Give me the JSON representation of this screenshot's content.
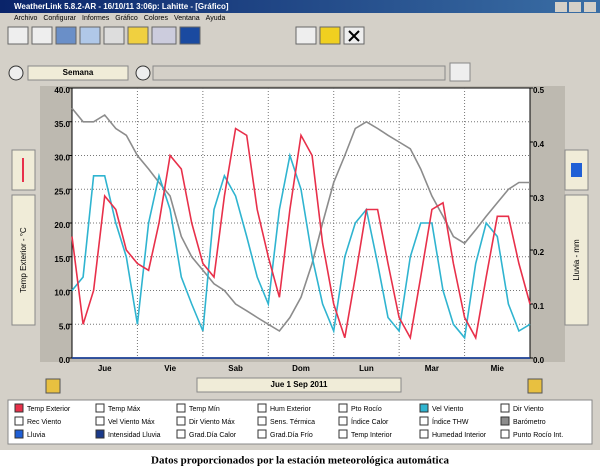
{
  "ui": {
    "window_title": "WeatherLink 5.8.2-AR  -  16/10/11   3:06p: Lahitte - [Gráfico]",
    "menu": [
      "Archivo",
      "Configurar",
      "Informes",
      "Gráfico",
      "Colores",
      "Ventana",
      "Ayuda"
    ],
    "period": "Semana",
    "date": "Jue 1 Sep 2011",
    "caption": "Datos proporcionados por la estación meteorológica automática"
  },
  "chart_data": {
    "type": "line",
    "ylabel": "Temp Exterior - °C",
    "y2label": "Lluvia - mm",
    "x": [
      0,
      0.17,
      0.33,
      0.5,
      0.67,
      0.83,
      1,
      1.17,
      1.33,
      1.5,
      1.67,
      1.83,
      2,
      2.17,
      2.33,
      2.5,
      2.67,
      2.83,
      3,
      3.17,
      3.33,
      3.5,
      3.67,
      3.83,
      4,
      4.17,
      4.33,
      4.5,
      4.67,
      4.83,
      5,
      5.17,
      5.33,
      5.5,
      5.67,
      5.83,
      6,
      6.17,
      6.33,
      6.5,
      6.67,
      6.83,
      7
    ],
    "xlim": [
      0,
      7
    ],
    "xticks": [
      {
        "value": 0.5,
        "label": "Jue"
      },
      {
        "value": 1.5,
        "label": "Vie"
      },
      {
        "value": 2.5,
        "label": "Sab"
      },
      {
        "value": 3.5,
        "label": "Dom"
      },
      {
        "value": 4.5,
        "label": "Lun"
      },
      {
        "value": 5.5,
        "label": "Mar"
      },
      {
        "value": 6.5,
        "label": "Mie"
      }
    ],
    "ylim": [
      0,
      40
    ],
    "yticks": [
      {
        "value": 0,
        "label": "0.0"
      },
      {
        "value": 5,
        "label": "5.0"
      },
      {
        "value": 10,
        "label": "10.0"
      },
      {
        "value": 15,
        "label": "15.0"
      },
      {
        "value": 20,
        "label": "20.0"
      },
      {
        "value": 25,
        "label": "25.0"
      },
      {
        "value": 30,
        "label": "30.0"
      },
      {
        "value": 35,
        "label": "35.0"
      },
      {
        "value": 40,
        "label": "40.0"
      }
    ],
    "y2lim": [
      0,
      0.5
    ],
    "y2ticks": [
      {
        "value": 0,
        "label": "0.0"
      },
      0.1,
      0.2,
      0.3,
      0.4,
      0.5
    ],
    "grid": true,
    "series": [
      {
        "name": "Temp Exterior",
        "color": "#e8304a",
        "values": [
          18,
          5,
          10,
          24,
          22,
          16,
          14,
          13,
          20,
          30,
          28,
          20,
          14,
          12,
          24,
          34,
          33,
          22,
          15,
          9,
          22,
          33,
          30,
          17,
          8,
          3,
          12,
          22,
          22,
          14,
          6,
          3,
          12,
          22,
          23,
          14,
          6,
          3,
          12,
          21,
          21,
          14,
          8
        ]
      },
      {
        "name": "Vel Viento",
        "color": "#2fb4d0",
        "values": [
          10,
          12,
          27,
          27,
          20,
          15,
          5,
          20,
          27,
          22,
          12,
          8,
          4,
          22,
          27,
          24,
          18,
          12,
          8,
          22,
          30,
          25,
          15,
          8,
          4,
          15,
          20,
          22,
          14,
          6,
          4,
          15,
          20,
          20,
          10,
          5,
          3,
          14,
          20,
          18,
          8,
          4,
          5
        ]
      },
      {
        "name": "Barómetro",
        "color": "#8c8c8c",
        "values": [
          37,
          35,
          35,
          36,
          34,
          33,
          30,
          28,
          26,
          24,
          18,
          15,
          13,
          11,
          10,
          8,
          7,
          6,
          5,
          4,
          6,
          9,
          14,
          20,
          26,
          30,
          34,
          35,
          34,
          33,
          32,
          31,
          28,
          24,
          21,
          18,
          17,
          19,
          21,
          23,
          25,
          26,
          26
        ]
      },
      {
        "name": "Lluvia",
        "color": "#1f5fd6",
        "axis": "y2",
        "values": [
          0,
          0,
          0,
          0,
          0,
          0,
          0,
          0,
          0,
          0,
          0,
          0,
          0,
          0,
          0,
          0,
          0,
          0,
          0,
          0,
          0,
          0,
          0,
          0,
          0,
          0,
          0,
          0,
          0,
          0,
          0,
          0,
          0,
          0,
          0,
          0,
          0,
          0,
          0,
          0,
          0,
          0,
          0
        ]
      },
      {
        "name": "Intensidad Lluvia",
        "color": "#1a3a8a",
        "axis": "y2",
        "values": [
          0,
          0,
          0,
          0,
          0,
          0,
          0,
          0,
          0,
          0,
          0,
          0,
          0,
          0,
          0,
          0,
          0,
          0,
          0,
          0,
          0,
          0,
          0,
          0,
          0,
          0,
          0,
          0,
          0,
          0,
          0,
          0,
          0,
          0,
          0,
          0,
          0,
          0,
          0,
          0,
          0,
          0,
          0
        ]
      }
    ],
    "legend_extra": [
      "Temp Máx",
      "Temp Mín",
      "Hum Exterior",
      "Pto Rocío",
      "Dir Viento",
      "Rec Viento",
      "Vel Viento Máx",
      "Dir Viento Máx",
      "Sens. Térmica",
      "Índice Calor",
      "Índice THW",
      "Grad.Día Calor",
      "Grad.Día Frío",
      "Temp Interior",
      "Humedad Interior",
      "Punto Rocío Int."
    ]
  }
}
